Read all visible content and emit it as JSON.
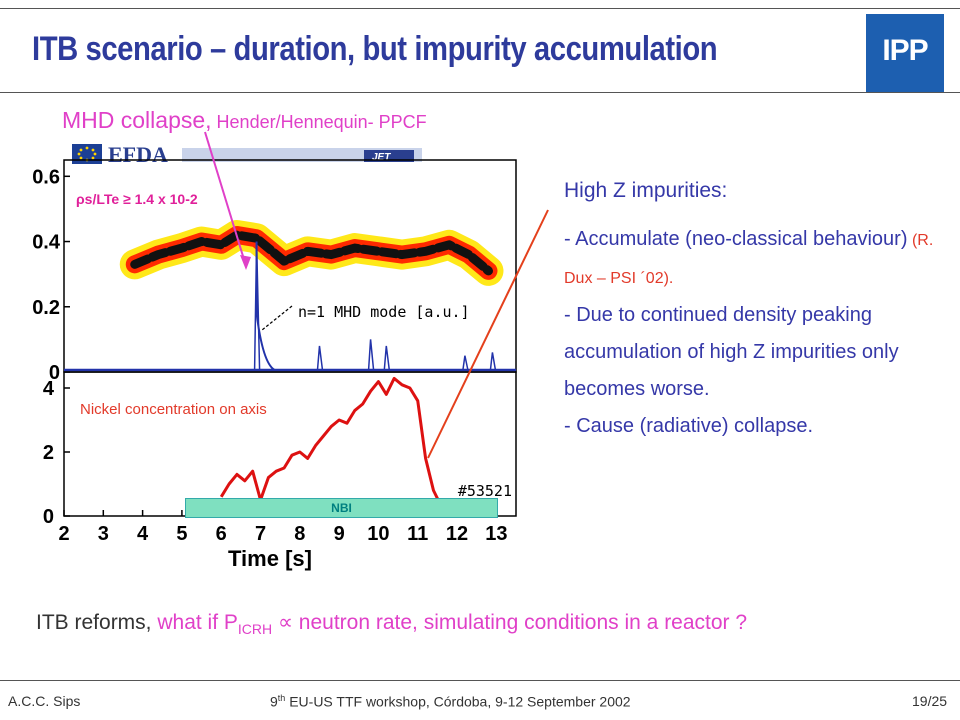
{
  "slide": {
    "title": "ITB scenario – duration, but impurity accumulation",
    "logo_text": "IPP",
    "mhd_label_main": "MHD collapse,",
    "mhd_label_ref": " Hender/Hennequin- PPCF",
    "right_text": {
      "heading": "High Z impurities:",
      "line1": "- Accumulate (neo-classical behaviour)",
      "line1_cite": " (R. Dux – PSI ´02).",
      "line2": "- Due to continued density peaking accumulation of high Z impurities only becomes worse.",
      "line3": "- Cause (radiative) collapse."
    },
    "bottom": {
      "part1": "ITB reforms, ",
      "part2": "what if P",
      "sub": "ICRH",
      "part3": " ∝ neutron rate, simulating conditions in a reactor ?"
    },
    "footer": {
      "left": "A.C.C. Sips",
      "center_pre": "9",
      "center_sup": "th",
      "center_post": " EU-US TTF workshop, Córdoba, 9-12 September 2002",
      "right": "19/25"
    },
    "colors": {
      "title": "#2e3b9c",
      "text": "#3538a8",
      "pink": "#e040c8",
      "red": "#e23a2a",
      "nickel": "#dd1111",
      "mhd": "#2233aa"
    }
  },
  "chart_data": {
    "type": "line",
    "x": [
      6.0,
      6.2,
      6.4,
      6.6,
      6.8,
      7.0,
      7.2,
      7.4,
      7.6,
      7.8,
      8.0,
      8.2,
      8.4,
      8.6,
      8.8,
      9.0,
      9.2,
      9.4,
      9.6,
      9.8,
      10.0,
      10.2,
      10.4,
      10.6,
      10.8,
      11.0,
      11.2,
      11.4,
      11.6
    ],
    "top_panel": {
      "ylim": [
        0,
        0.65
      ],
      "yticks": [
        "0.6",
        "0.4",
        "0.2",
        "0"
      ],
      "annotation_rho": "ρs/LTe ≥ 1.4 x 10-2",
      "annotation_mhd": "n=1 MHD mode [a.u.]",
      "rho_band": [
        {
          "x": 3.8,
          "y": 0.33
        },
        {
          "x": 4.4,
          "y": 0.36
        },
        {
          "x": 5.0,
          "y": 0.38
        },
        {
          "x": 5.5,
          "y": 0.4
        },
        {
          "x": 6.0,
          "y": 0.39
        },
        {
          "x": 6.4,
          "y": 0.42
        },
        {
          "x": 6.9,
          "y": 0.41
        },
        {
          "x": 7.6,
          "y": 0.34
        },
        {
          "x": 8.2,
          "y": 0.37
        },
        {
          "x": 8.8,
          "y": 0.36
        },
        {
          "x": 9.4,
          "y": 0.38
        },
        {
          "x": 10.0,
          "y": 0.37
        },
        {
          "x": 10.6,
          "y": 0.36
        },
        {
          "x": 11.2,
          "y": 0.37
        },
        {
          "x": 11.8,
          "y": 0.39
        },
        {
          "x": 12.3,
          "y": 0.36
        },
        {
          "x": 12.8,
          "y": 0.31
        }
      ],
      "mhd_spikes": [
        {
          "x": 6.9,
          "y": 0.4
        },
        {
          "x": 8.5,
          "y": 0.08
        },
        {
          "x": 9.8,
          "y": 0.1
        },
        {
          "x": 10.2,
          "y": 0.08
        },
        {
          "x": 12.2,
          "y": 0.05
        },
        {
          "x": 12.9,
          "y": 0.06
        }
      ]
    },
    "bottom_panel": {
      "ylim": [
        0,
        4.5
      ],
      "yticks": [
        "4",
        "2",
        "0"
      ],
      "series": [
        {
          "name": "Nickel concentration on axis",
          "values": [
            0.6,
            1.0,
            1.3,
            1.1,
            1.4,
            0.5,
            1.2,
            1.4,
            1.5,
            1.9,
            2.0,
            1.8,
            2.2,
            2.5,
            2.8,
            3.0,
            2.9,
            3.3,
            3.5,
            3.9,
            4.2,
            3.8,
            4.3,
            4.1,
            4.0,
            3.6,
            1.8,
            0.8,
            0.3
          ]
        }
      ],
      "shot_label": "#53521",
      "nbi_label": "NBI"
    },
    "xlim": [
      2,
      13.5
    ],
    "xticks": [
      "2",
      "3",
      "4",
      "5",
      "6",
      "7",
      "8",
      "9",
      "10",
      "11",
      "12",
      "13"
    ],
    "xlabel": "Time [s]"
  }
}
